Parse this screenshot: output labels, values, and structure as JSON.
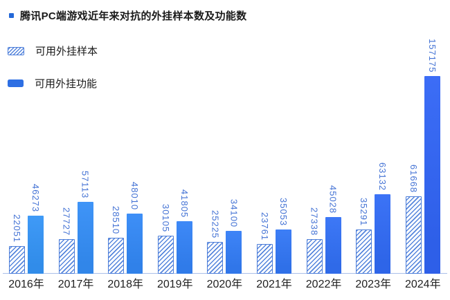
{
  "title": {
    "text": "腾讯PC端游戏近年来对抗的外挂样本数及功能数"
  },
  "legend": [
    {
      "label": "可用外挂样本",
      "swatch": "hatched"
    },
    {
      "label": "可用外挂功能",
      "swatch": "solid"
    }
  ],
  "chart_data": {
    "type": "bar",
    "title": "腾讯PC端游戏近年来对抗的外挂样本数及功能数",
    "categories": [
      "2016年",
      "2017年",
      "2018年",
      "2019年",
      "2020年",
      "2021年",
      "2022年",
      "2023年",
      "2024年"
    ],
    "series": [
      {
        "name": "可用外挂样本",
        "style": "hatched",
        "values": [
          22051,
          27727,
          28510,
          30105,
          25225,
          23761,
          27338,
          35291,
          61668
        ]
      },
      {
        "name": "可用外挂功能",
        "style": "solid",
        "values": [
          46273,
          57113,
          48010,
          41805,
          34100,
          35053,
          45028,
          63132,
          157175
        ]
      }
    ],
    "value_labels": "rotated-90deg-above-bars",
    "xlabel": "",
    "ylabel": "",
    "ylim": [
      0,
      160000
    ],
    "grid": false,
    "legend_position": "top-left"
  },
  "colors": {
    "accent_bullet": "#2468d8",
    "solid_bar_start": "#318CE9",
    "solid_bar_end": "#2E5FE8",
    "hatch_line": "#5585DC",
    "hatch_border": "#4A7CD9",
    "value_label_text": "#4372D4",
    "axis_line": "#A9BFE8",
    "title_text": "#1A1A1A",
    "category_text": "#1F1F1F"
  }
}
